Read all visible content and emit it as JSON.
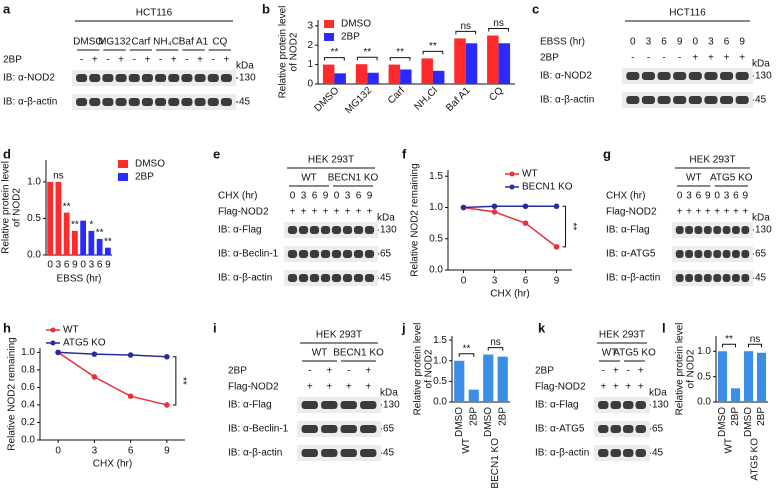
{
  "panels": [
    {
      "letter": "a",
      "type": "blot",
      "header": "HCT116",
      "groups": [
        "DMSO",
        "MG132",
        "Carf",
        "NH₄Cl",
        "Baf A1",
        "CQ"
      ],
      "conditions": [
        {
          "label": "2BP",
          "values": [
            "-",
            "+",
            "-",
            "+",
            "-",
            "+",
            "-",
            "+",
            "-",
            "+",
            "-",
            "+"
          ]
        }
      ],
      "kda_label": "kDa",
      "blots": [
        {
          "label": "IB: α-NOD2",
          "kda": 130
        },
        {
          "label": "IB: α-β-actin",
          "kda": 45
        }
      ]
    },
    {
      "letter": "b",
      "type": "bar",
      "y_label": [
        "Relative protein level",
        "of NOD2"
      ],
      "categories": [
        "DMSO",
        "MG132",
        "Carf",
        "NH₄Cl",
        "Baf A1",
        "CQ"
      ],
      "series": [
        {
          "name": "DMSO",
          "color": "#ff2a2a",
          "values": [
            1.0,
            1.02,
            1.0,
            1.32,
            2.35,
            2.5
          ]
        },
        {
          "name": "2BP",
          "color": "#2a2aff",
          "values": [
            0.55,
            0.58,
            0.75,
            0.68,
            2.1,
            2.1
          ]
        }
      ],
      "ylim": [
        0,
        3.3
      ],
      "yticks": [
        0,
        1,
        2,
        3
      ],
      "legend": "upper left",
      "brackets": true,
      "significance": [
        "**",
        "**",
        "**",
        "**",
        "ns",
        "ns"
      ]
    },
    {
      "letter": "c",
      "type": "blot",
      "header": "HCT116",
      "conditions": [
        {
          "label": "EBSS (hr)",
          "values": [
            0,
            3,
            6,
            9,
            0,
            3,
            6,
            9
          ]
        },
        {
          "label": "2BP",
          "values": [
            "-",
            "-",
            "-",
            "-",
            "+",
            "+",
            "+",
            "+"
          ]
        }
      ],
      "kda_label": "kDa",
      "blots": [
        {
          "label": "IB: α-NOD2",
          "kda": 130
        },
        {
          "label": "IB: α-β-actin",
          "kda": 45
        }
      ]
    },
    {
      "letter": "d",
      "type": "bar",
      "y_label": [
        "Relative protein level",
        "of NOD2"
      ],
      "x_label": "EBSS (hr)",
      "categories": [
        0,
        3,
        6,
        9,
        0,
        3,
        6,
        9
      ],
      "series": [
        {
          "name": "DMSO",
          "color": "#ff2a2a",
          "values": [
            1.0,
            1.0,
            0.58,
            0.33,
            null,
            null,
            null,
            null
          ]
        },
        {
          "name": "2BP",
          "color": "#2a2aff",
          "values": [
            null,
            null,
            null,
            null,
            0.47,
            0.33,
            0.22,
            0.1
          ]
        }
      ],
      "ylim": [
        0,
        1.3
      ],
      "yticks": [
        {
          "value": 0,
          "label": "0.0"
        },
        0.5,
        {
          "value": 1,
          "label": "1.0"
        }
      ],
      "legend": "upper right",
      "brackets": false,
      "significance": [
        null,
        "ns",
        "**",
        "**",
        null,
        "*",
        "**",
        "**"
      ]
    },
    {
      "letter": "e",
      "type": "blot",
      "header": "HEK 293T",
      "groups": [
        "WT",
        "BECN1 KO"
      ],
      "conditions": [
        {
          "label": "CHX (hr)",
          "values": [
            0,
            3,
            6,
            9,
            0,
            3,
            6,
            9
          ]
        },
        {
          "label": "Flag-NOD2",
          "values": [
            "+",
            "+",
            "+",
            "+",
            "+",
            "+",
            "+",
            "+"
          ]
        }
      ],
      "kda_label": "kDa",
      "blots": [
        {
          "label": "IB: α-Flag",
          "kda": 130
        },
        {
          "label": "IB: α-Beclin-1",
          "kda": 65
        },
        {
          "label": "IB: α-β-actin",
          "kda": 45
        }
      ]
    },
    {
      "letter": "f",
      "type": "line",
      "y_label": [
        "Relative NOD2 remaining"
      ],
      "x_label": "CHX (hr)",
      "x": [
        0,
        3,
        6,
        9
      ],
      "xlim": [
        -1.5,
        10.5
      ],
      "xticks": [
        0,
        3,
        6,
        9
      ],
      "ylim": [
        0,
        1.6
      ],
      "yticks": [
        {
          "value": 0,
          "label": "0.0"
        },
        0.5,
        {
          "value": 1,
          "label": "1.0"
        },
        1.5
      ],
      "series": [
        {
          "name": "WT",
          "color": "#e8303a",
          "values": [
            1.0,
            0.93,
            0.75,
            0.37
          ]
        },
        {
          "name": "BECN1 KO",
          "color": "#2b2ba0",
          "values": [
            1.0,
            1.02,
            1.02,
            1.02
          ]
        }
      ],
      "legend": "upper right",
      "significance": "**"
    },
    {
      "letter": "g",
      "type": "blot",
      "header": "HEK 293T",
      "groups": [
        "WT",
        "ATG5 KO"
      ],
      "conditions": [
        {
          "label": "CHX (hr)",
          "values": [
            0,
            3,
            6,
            9,
            0,
            3,
            6,
            9
          ]
        },
        {
          "label": "Flag-NOD2",
          "values": [
            "+",
            "+",
            "+",
            "+",
            "+",
            "+",
            "+",
            "+"
          ]
        }
      ],
      "kda_label": "kDa",
      "blots": [
        {
          "label": "IB: α-Flag",
          "kda": 130
        },
        {
          "label": "IB: α-ATG5",
          "kda": 65
        },
        {
          "label": "IB: α-β-actin",
          "kda": 45
        }
      ]
    },
    {
      "letter": "h",
      "type": "line",
      "y_label": [
        "Relative NOD2 remaining"
      ],
      "x_label": "CHX (hr)",
      "x": [
        0,
        3,
        6,
        9
      ],
      "xlim": [
        -1.5,
        10.5
      ],
      "xticks": [
        0,
        3,
        6,
        9
      ],
      "ylim": [
        0,
        1.05
      ],
      "yticks": [
        {
          "value": 0,
          "label": "0.0"
        },
        0.2,
        0.4,
        0.6,
        0.8,
        {
          "value": 1,
          "label": "1.0"
        }
      ],
      "series": [
        {
          "name": "WT",
          "color": "#e8303a",
          "values": [
            1.0,
            0.72,
            0.5,
            0.4
          ]
        },
        {
          "name": "ATG5 KO",
          "color": "#2b2ba0",
          "values": [
            1.0,
            0.98,
            0.97,
            0.95
          ]
        }
      ],
      "legend": "upper left",
      "significance": "**"
    },
    {
      "letter": "i",
      "type": "blot",
      "header": "HEK 293T",
      "groups": [
        "WT",
        "BECN1 KO"
      ],
      "conditions": [
        {
          "label": "2BP",
          "values": [
            "-",
            "+",
            "-",
            "+"
          ]
        },
        {
          "label": "Flag-NOD2",
          "values": [
            "+",
            "+",
            "+",
            "+"
          ]
        }
      ],
      "kda_label": "kDa",
      "blots": [
        {
          "label": "IB: α-Flag",
          "kda": 130
        },
        {
          "label": "IB: α-Beclin-1",
          "kda": 65
        },
        {
          "label": "IB: α-β-actin",
          "kda": 45
        }
      ]
    },
    {
      "letter": "j",
      "type": "bar",
      "y_label": [
        "Relative protein level",
        "of NOD2"
      ],
      "categories": [
        "DMSO",
        "2BP",
        "DMSO",
        "2BP"
      ],
      "x_groups": [
        "WT",
        "BECN1 KO"
      ],
      "values": [
        1.0,
        0.3,
        1.15,
        1.1
      ],
      "color": "#3a8ee6",
      "ylim": [
        0,
        1.6
      ],
      "yticks": [
        {
          "value": 0,
          "label": "0.0"
        },
        0.5,
        {
          "value": 1,
          "label": "1.0"
        },
        1.5
      ],
      "brackets": true,
      "significance": [
        "**",
        "ns"
      ]
    },
    {
      "letter": "k",
      "type": "blot",
      "header": "HEK 293T",
      "groups": [
        "WT",
        "ATG5 KO"
      ],
      "conditions": [
        {
          "label": "2BP",
          "values": [
            "-",
            "+",
            "-",
            "+"
          ]
        },
        {
          "label": "Flag-NOD2",
          "values": [
            "+",
            "+",
            "+",
            "+"
          ]
        }
      ],
      "kda_label": "kDa",
      "blots": [
        {
          "label": "IB: α-Flag",
          "kda": 130
        },
        {
          "label": "IB: α-ATG5",
          "kda": 65
        },
        {
          "label": "IB: α-β-actin",
          "kda": 45
        }
      ]
    },
    {
      "letter": "l",
      "type": "bar",
      "y_label": [
        "Relative protein level",
        "of NOD2"
      ],
      "categories": [
        "DMSO",
        "2BP",
        "DMSO",
        "2BP"
      ],
      "x_groups": [
        "WT",
        "ATG5 KO"
      ],
      "values": [
        1.0,
        0.27,
        1.0,
        0.97
      ],
      "color": "#3a8ee6",
      "ylim": [
        0,
        1.3
      ],
      "yticks": [
        {
          "value": 0,
          "label": "0.0"
        },
        0.5,
        {
          "value": 1,
          "label": "1.0"
        }
      ],
      "brackets": true,
      "significance": [
        "**",
        "ns"
      ]
    }
  ]
}
